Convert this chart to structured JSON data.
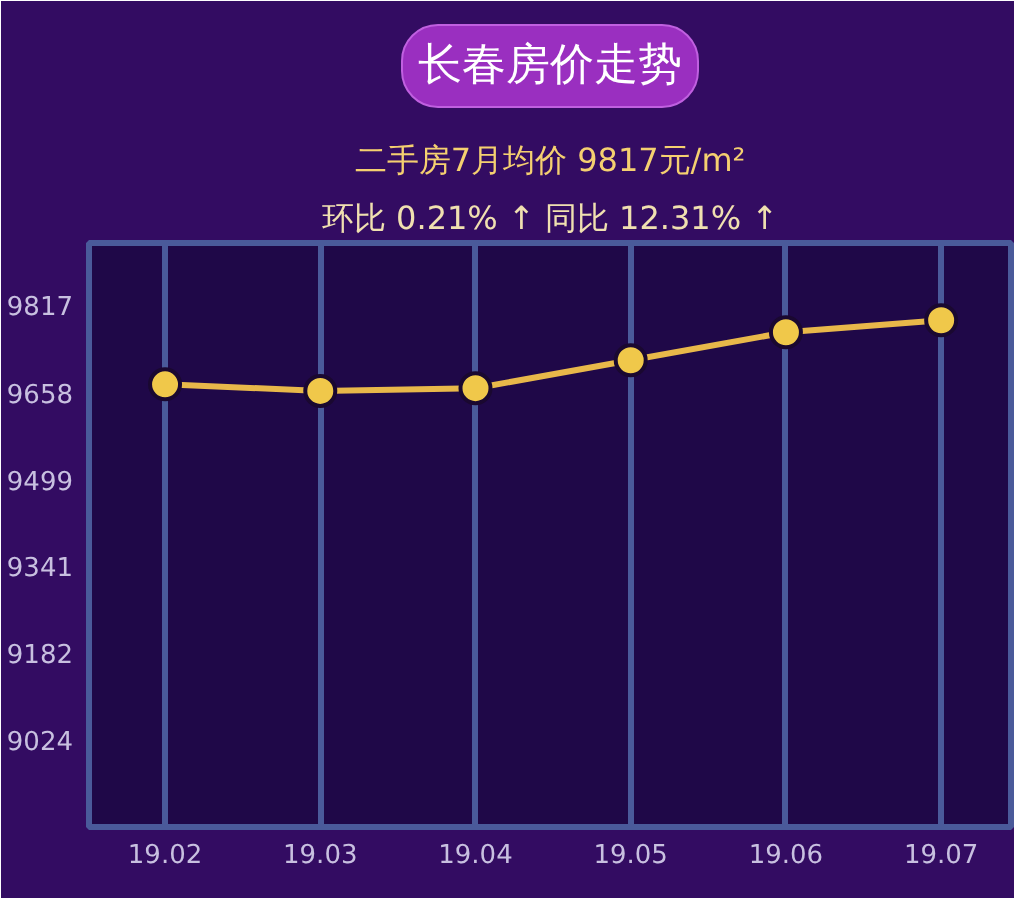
{
  "chart_data": {
    "type": "line",
    "title": "长春房价走势",
    "subtitle": "二手房7月均价 9817元/m²",
    "annotations": [
      "环比 0.21% ↑ 同比 12.31% ↑"
    ],
    "categories": [
      "19.02",
      "19.03",
      "19.04",
      "19.05",
      "19.06",
      "19.07"
    ],
    "series": [
      {
        "color": "#e8b84a",
        "values": [
          9673,
          9661,
          9666,
          9717,
          9768,
          9790
        ]
      }
    ],
    "ylim": [
      8865,
      9931
    ],
    "yticks": [
      9024,
      9182,
      9341,
      9499,
      9658,
      9817
    ],
    "grid": "x",
    "marker": "circle",
    "line_style": "solid"
  }
}
